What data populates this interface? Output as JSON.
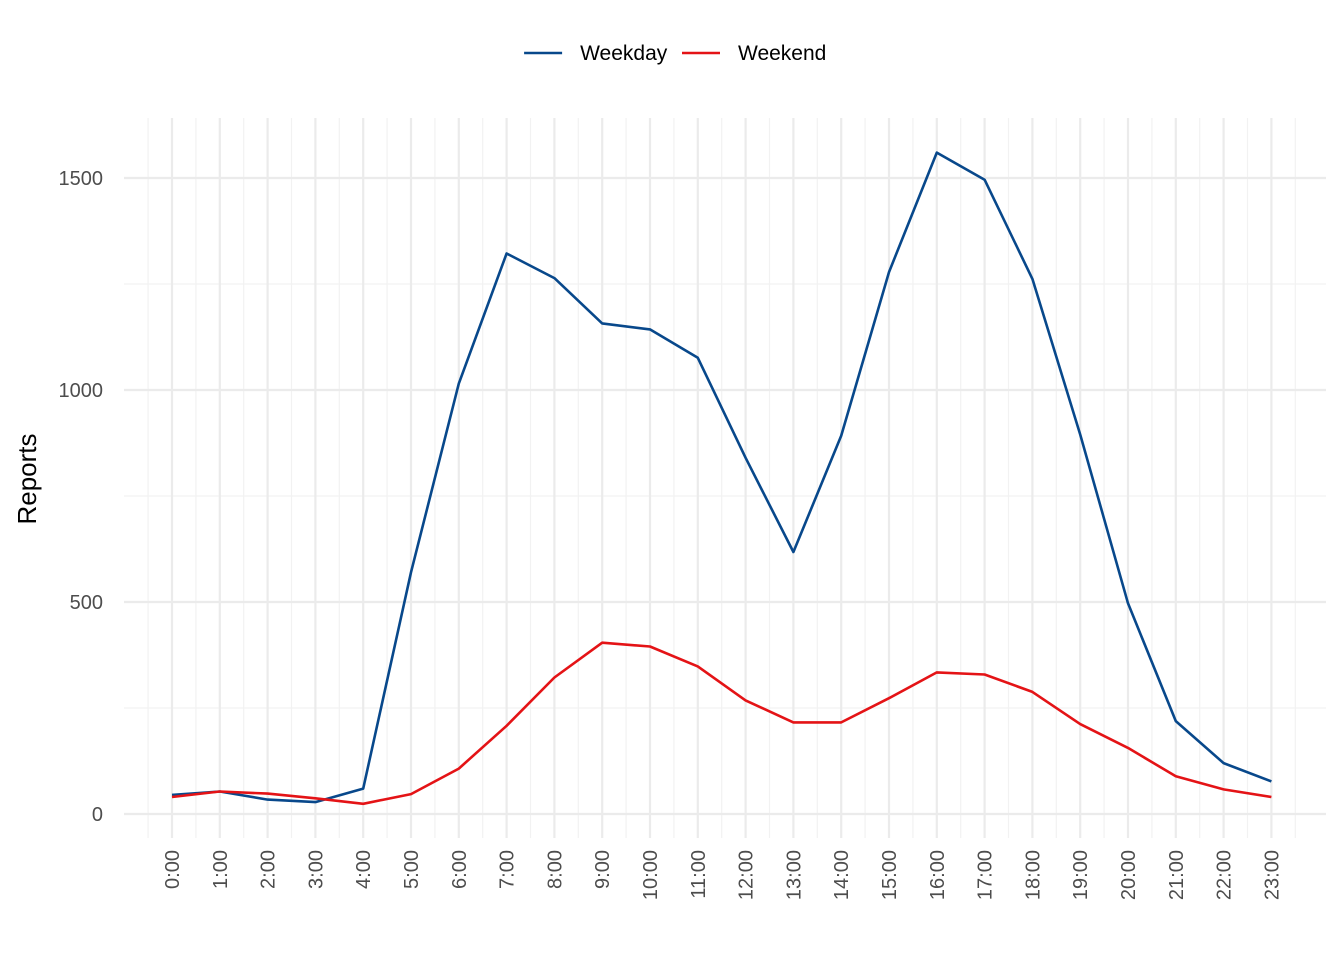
{
  "chart_data": {
    "type": "line",
    "title": "",
    "xlabel": "",
    "ylabel": "Reports",
    "categories": [
      "0:00",
      "1:00",
      "2:00",
      "3:00",
      "4:00",
      "5:00",
      "6:00",
      "7:00",
      "8:00",
      "9:00",
      "10:00",
      "11:00",
      "12:00",
      "13:00",
      "14:00",
      "15:00",
      "16:00",
      "17:00",
      "18:00",
      "19:00",
      "20:00",
      "21:00",
      "22:00",
      "23:00"
    ],
    "series": [
      {
        "name": "Weekday",
        "color": "#08488b",
        "values": [
          45,
          53,
          34,
          28,
          60,
          570,
          1015,
          1322,
          1264,
          1157,
          1143,
          1076,
          840,
          618,
          892,
          1278,
          1560,
          1496,
          1262,
          895,
          497,
          219,
          120,
          77
        ]
      },
      {
        "name": "Weekend",
        "color": "#e41316",
        "values": [
          40,
          53,
          48,
          37,
          24,
          47,
          107,
          208,
          322,
          404,
          395,
          348,
          268,
          216,
          216,
          273,
          334,
          329,
          288,
          212,
          156,
          89,
          58,
          40
        ]
      }
    ],
    "ylim": [
      -55,
      1640
    ],
    "yticks": [
      0,
      500,
      1000,
      1500
    ],
    "grid": true,
    "legend_position": "top"
  }
}
